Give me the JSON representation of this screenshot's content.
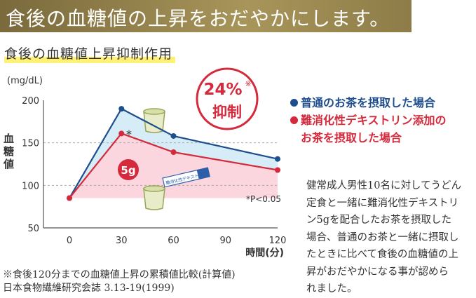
{
  "header": {
    "title": "食後の血糖値の上昇をおだやかにします。"
  },
  "subtitle": "食後の血糖値上昇抑制作用",
  "chart_data": {
    "type": "line",
    "x": [
      0,
      30,
      60,
      120
    ],
    "series": [
      {
        "name": "普通のお茶を摂取した場合",
        "values": [
          85,
          190,
          158,
          131
        ],
        "color": "#1f4e8c"
      },
      {
        "name": "難消化性デキストリン添加のお茶を摂取した場合",
        "values": [
          85,
          161,
          139,
          118
        ],
        "color": "#d42a3c"
      }
    ],
    "ylabel_unit": "(mg/dL)",
    "ylabel": [
      "血",
      "糖",
      "値"
    ],
    "xlabel": "時間(分)",
    "xticks": [
      "0",
      "30",
      "60",
      "90",
      "120"
    ],
    "yticks": [
      "200",
      "150",
      "100",
      "50"
    ],
    "xlim": [
      0,
      120
    ],
    "ylim": [
      50,
      200
    ],
    "grid": "dashed horizontal",
    "annotations": {
      "significance_marker": "*",
      "significance_note": "*P<0.05",
      "dose": "5g",
      "stick_label": "難消化性デキストリン"
    }
  },
  "badge": {
    "percent": "24%",
    "percent_mark": "※",
    "label": "抑制",
    "color": "#d42a3c"
  },
  "legend": {
    "blue": {
      "lines": [
        "普通のお茶を摂取した場合"
      ]
    },
    "red": {
      "lines": [
        "難消化性デキストリン添加の",
        "お茶を摂取した場合"
      ]
    }
  },
  "description": [
    "健常成人男性10名に対してうどん",
    "定食と一緒に難消化性デキストリ",
    "ン5gを配合したお茶を摂取した",
    "場合、普通のお茶と一緒に摂取し",
    "たときに比べて食後の血糖値の上",
    "昇がおだやかになる事が認めら",
    "れました。"
  ],
  "footnote": [
    "※食後120分までの血糖値上昇の累積値比較(計算値)",
    "日本食物繊維研究会誌 3.13-19(1999)"
  ]
}
